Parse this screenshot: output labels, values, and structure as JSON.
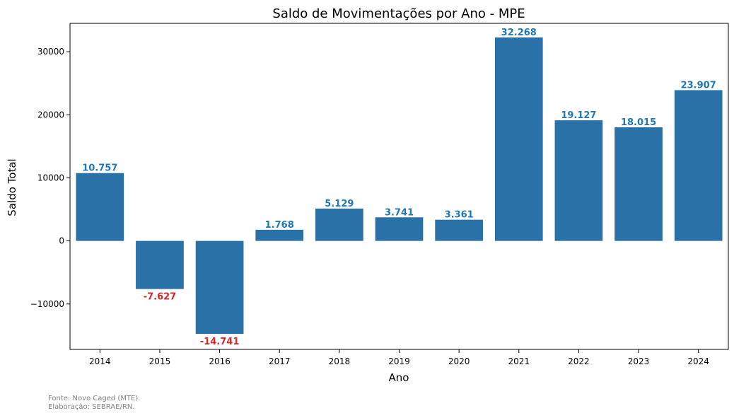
{
  "chart_data": {
    "type": "bar",
    "title": "Saldo de Movimentações por Ano - MPE",
    "xlabel": "Ano",
    "ylabel": "Saldo Total",
    "categories": [
      "2014",
      "2015",
      "2016",
      "2017",
      "2018",
      "2019",
      "2020",
      "2021",
      "2022",
      "2023",
      "2024"
    ],
    "values": [
      10757,
      -7627,
      -14741,
      1768,
      5129,
      3741,
      3361,
      32268,
      19127,
      18015,
      23907
    ],
    "value_labels": [
      "10.757",
      "-7.627",
      "-14.741",
      "1.768",
      "5.129",
      "3.741",
      "3.361",
      "32.268",
      "19.127",
      "18.015",
      "23.907"
    ],
    "ylim": [
      -17200,
      34500
    ],
    "yticks": [
      -10000,
      0,
      10000,
      20000,
      30000
    ],
    "ytick_labels": [
      "−10000",
      "0",
      "10000",
      "20000",
      "30000"
    ],
    "grid": false,
    "colors": {
      "bar": "#2a71a8",
      "positive_label": "#1f77b4",
      "negative_label": "#d62728"
    }
  },
  "footer": {
    "source": "Fonte: Novo Caged (MTE).",
    "credit": "Elaboração: SEBRAE/RN."
  }
}
